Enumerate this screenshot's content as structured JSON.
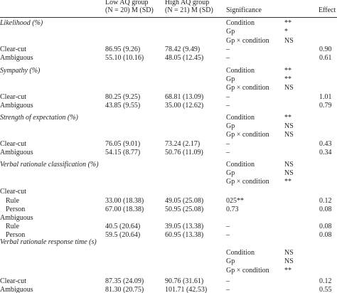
{
  "table": {
    "header": [
      [
        "Low AQ group",
        "(N = 20) M (SD)"
      ],
      [
        "High AQ group",
        "(N = 21) M (SD)"
      ],
      [
        "Significance"
      ],
      [
        "Effect Size"
      ]
    ],
    "sections": [
      {
        "title": "Likelihood (%)",
        "tests": [
          {
            "term": "Condition",
            "result": "**"
          },
          {
            "term": "Gp",
            "result": "*"
          },
          {
            "term": "Gp × condition",
            "result": "NS"
          }
        ],
        "rows": [
          {
            "label": "Clear-cut",
            "low": "86.95 (9.26)",
            "high": "78.42 (9.49)",
            "sig": "–",
            "effect": "0.90"
          },
          {
            "label": "Ambiguous",
            "low": "55.10 (10.16)",
            "high": "48.05 (12.45)",
            "sig": "–",
            "effect": "0.61"
          }
        ]
      },
      {
        "title": "Sympathy (%)",
        "tests": [
          {
            "term": "Condition",
            "result": "**"
          },
          {
            "term": "Gp",
            "result": "**"
          },
          {
            "term": "Gp × condition",
            "result": "NS"
          }
        ],
        "rows": [
          {
            "label": "Clear-cut",
            "low": "80.25 (9.25)",
            "high": "68.81 (13.09)",
            "sig": "–",
            "effect": "1.01"
          },
          {
            "label": "Ambiguous",
            "low": "43.85 (9.55)",
            "high": "35.00 (12.62)",
            "sig": "–",
            "effect": "0.79"
          }
        ]
      },
      {
        "title": "Strength of expectation (%)",
        "tests": [
          {
            "term": "Condition",
            "result": "**"
          },
          {
            "term": "Gp",
            "result": "NS"
          },
          {
            "term": "Gp × condition",
            "result": "NS"
          }
        ],
        "rows": [
          {
            "label": "Clear-cut",
            "low": "76.05 (9.01)",
            "high": "73.24 (2.17)",
            "sig": "–",
            "effect": "0.43"
          },
          {
            "label": "Ambiguous",
            "low": "54.15 (8.77)",
            "high": "50.76 (11.09)",
            "sig": "–",
            "effect": "0.34"
          }
        ]
      },
      {
        "title": "Verbal rationale classification (%)",
        "tests": [
          {
            "term": "Condition",
            "result": "NS"
          },
          {
            "term": "Gp",
            "result": "NS"
          },
          {
            "term": "Gp × condition",
            "result": "**"
          }
        ],
        "rows": [
          {
            "label": "Clear-cut",
            "subrows": [
              {
                "label": "Rule",
                "low": "33.00 (18.38)",
                "high": "49.05 (25.08)",
                "sig": "025**",
                "effect": "0.12"
              },
              {
                "label": "Person",
                "low": "67.00 (18.38)",
                "high": "50.95 (25.08)",
                "sig": "0.73",
                "effect": "0.08"
              }
            ]
          },
          {
            "label": "Ambiguous",
            "subrows": [
              {
                "label": "Rule",
                "low": "40.5 (20.64)",
                "high": "39.05 (13.38)",
                "sig": "–",
                "effect": "0.08"
              },
              {
                "label": "Person",
                "low": "59.5 (20.64)",
                "high": "60.95 (13.38)",
                "sig": "–",
                "effect": "0.08"
              }
            ]
          }
        ]
      },
      {
        "title": "Verbal rationale response time (s)",
        "tests": [
          {
            "term": "Condition",
            "result": "NS"
          },
          {
            "term": "Gp",
            "result": "NS"
          },
          {
            "term": "Gp × condition",
            "result": "**"
          }
        ],
        "rows": [
          {
            "label": "Clear-cut",
            "low": "87.35 (24.09)",
            "high": "90.76 (31.61)",
            "sig": "–",
            "effect": "0.12"
          },
          {
            "label": "Ambiguous",
            "low": "81.30 (20.75)",
            "high": "101.71 (42.53)",
            "sig": "–",
            "effect": "0.55"
          }
        ]
      }
    ]
  }
}
